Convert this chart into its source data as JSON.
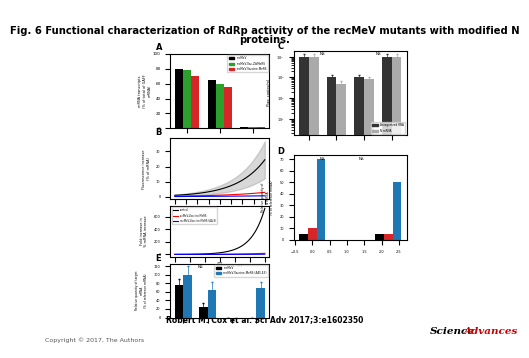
{
  "title_line1": "Fig. 6 Functional characterization of RdRp activity of the recMeV mutants with modified N",
  "title_line2": "proteins.",
  "citation": "Robert M. Cox et al. Sci Adv 2017;3:e1602350",
  "copyright": "Copyright © 2017, The Authors",
  "science_advances_text": "Science Advances",
  "bg_color": "#ffffff",
  "title_fontsize": 7.2,
  "citation_fontsize": 5.5,
  "copyright_fontsize": 4.5,
  "logo_fontsize": 7.5
}
